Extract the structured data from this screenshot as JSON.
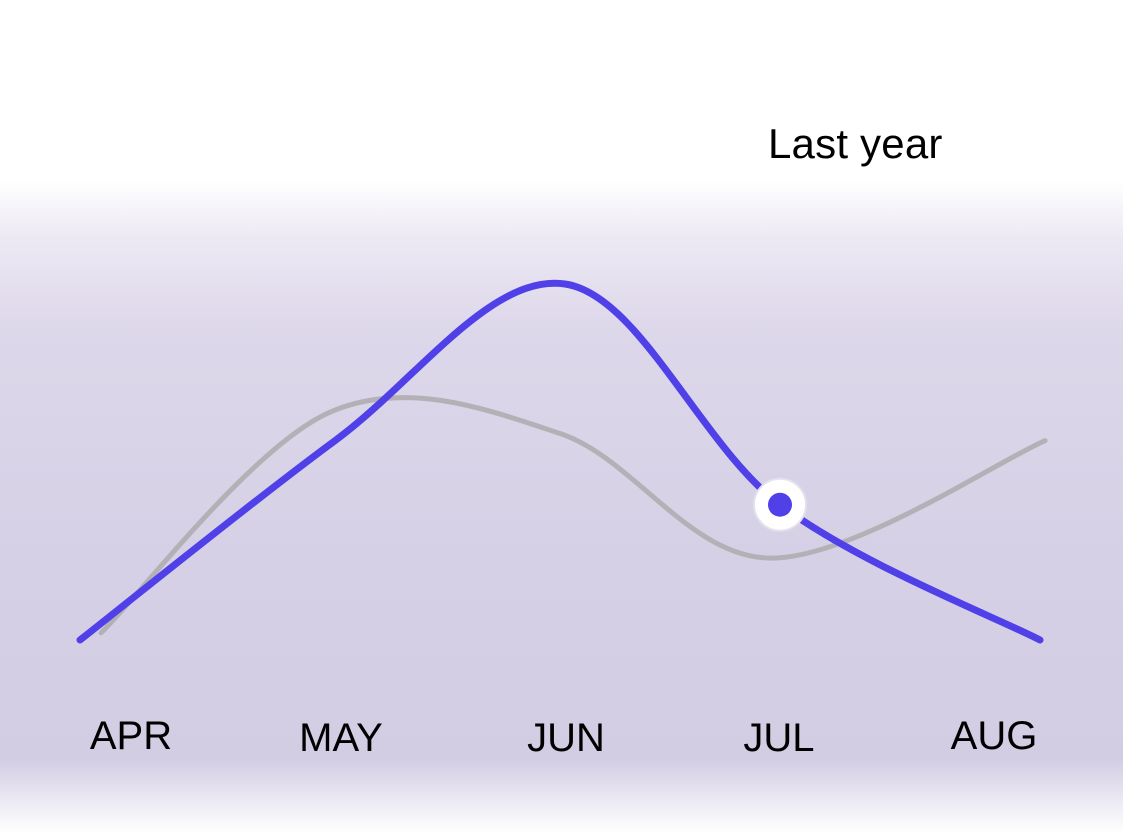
{
  "chart_data": {
    "type": "line",
    "categories": [
      "APR",
      "MAY",
      "JUN",
      "JUL",
      "AUG"
    ],
    "legend": [
      "Last year"
    ],
    "series": [
      {
        "color": "#5040e8",
        "values": [
          0.0,
          0.56,
          1.0,
          0.38,
          0.0
        ],
        "highlight_index": 3
      },
      {
        "name": "Last year",
        "color": "#b3b1b5",
        "values": [
          0.02,
          0.64,
          0.58,
          0.23,
          0.56
        ]
      }
    ],
    "ylim": [
      0,
      1
    ],
    "grid": false,
    "legend_position": "top-right"
  }
}
